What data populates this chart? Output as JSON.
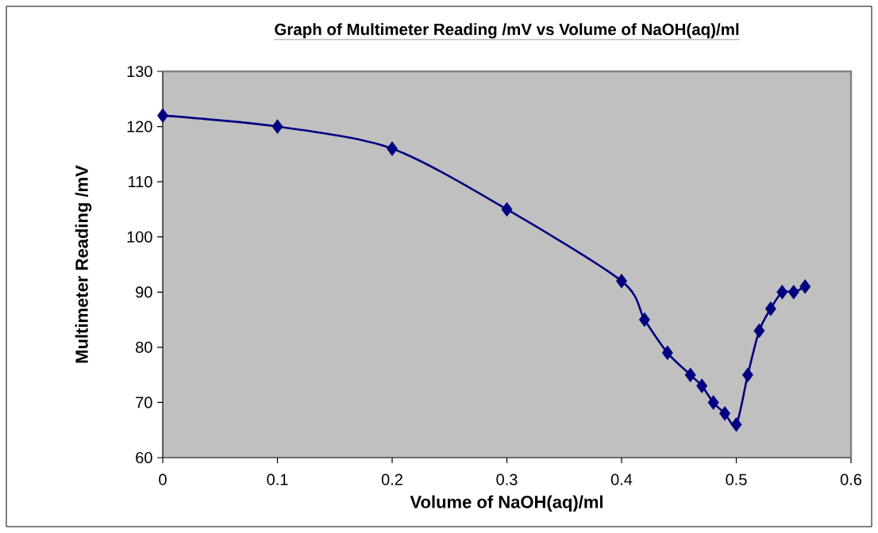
{
  "chart_data": {
    "type": "line",
    "title": "Graph of Multimeter Reading /mV vs Volume of NaOH(aq)/ml",
    "xlabel": "Volume of NaOH(aq)/ml",
    "ylabel": "Multimeter Reading /mV",
    "x": [
      0,
      0.1,
      0.2,
      0.3,
      0.4,
      0.42,
      0.44,
      0.46,
      0.47,
      0.48,
      0.49,
      0.5,
      0.51,
      0.52,
      0.53,
      0.54,
      0.55,
      0.56
    ],
    "series": [
      {
        "color": "#000080",
        "values": [
          122,
          120,
          116,
          105,
          92,
          85,
          79,
          75,
          73,
          70,
          68,
          66,
          75,
          83,
          87,
          90,
          90,
          91
        ]
      }
    ],
    "xlim": [
      0,
      0.6
    ],
    "ylim": [
      60,
      130
    ],
    "xticks": [
      0,
      0.1,
      0.2,
      0.3,
      0.4,
      0.5,
      0.6
    ],
    "yticks": [
      60,
      70,
      80,
      90,
      100,
      110,
      120,
      130
    ],
    "marker": "diamond",
    "line_style": "solid"
  }
}
